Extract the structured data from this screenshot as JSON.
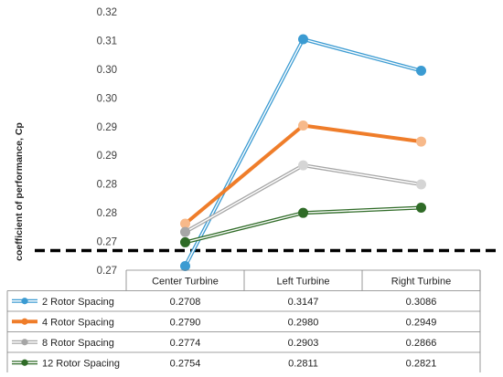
{
  "chart_data": {
    "type": "line",
    "title": "",
    "xlabel": "",
    "ylabel": "coefficient of performance, Cp",
    "ylim": [
      0.27,
      0.32
    ],
    "grid": false,
    "legend_placement": "bottom-table",
    "categories": [
      "Center Turbine",
      "Left Turbine",
      "Right Turbine"
    ],
    "y_tick_labels": [
      "0.27",
      "0.27",
      "0.28",
      "0.28",
      "0.29",
      "0.29",
      "0.30",
      "0.30",
      "0.31",
      "0.32"
    ],
    "series": [
      {
        "name": "2 Rotor Spacing",
        "values": [
          0.2708,
          0.3147,
          0.3086
        ],
        "value_labels": [
          "0.2708",
          "0.3147",
          "0.3086"
        ],
        "color": "#3b9bd2",
        "style": "double-line"
      },
      {
        "name": "4 Rotor Spacing",
        "values": [
          0.279,
          0.298,
          0.2949
        ],
        "value_labels": [
          "0.2790",
          "0.2980",
          "0.2949"
        ],
        "color": "#ef7d2a",
        "style": "solid"
      },
      {
        "name": "8 Rotor Spacing",
        "values": [
          0.2774,
          0.2903,
          0.2866
        ],
        "value_labels": [
          "0.2774",
          "0.2903",
          "0.2866"
        ],
        "color": "#a6a6a6",
        "style": "double-line"
      },
      {
        "name": "12 Rotor Spacing",
        "values": [
          0.2754,
          0.2811,
          0.2821
        ],
        "value_labels": [
          "0.2754",
          "0.2811",
          "0.2821"
        ],
        "color": "#2f6b27",
        "style": "double-line"
      }
    ],
    "reference_line": {
      "value": 0.2738,
      "style": "dashed",
      "color": "#000000"
    }
  }
}
